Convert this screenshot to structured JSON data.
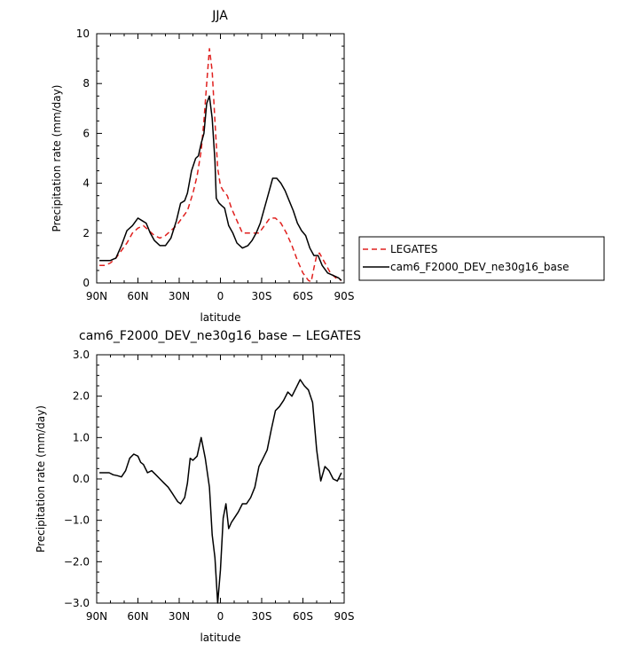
{
  "chart_data": [
    {
      "type": "line",
      "title": "JJA",
      "xlabel": "latitude",
      "ylabel": "Precipitation rate  (mm/day)",
      "xlim": [
        -90,
        90
      ],
      "ylim": [
        0,
        10
      ],
      "xticks": [
        -90,
        -60,
        -30,
        0,
        30,
        60,
        90
      ],
      "xtick_labels": [
        "90N",
        "60N",
        "30N",
        "0",
        "30S",
        "60S",
        "90S"
      ],
      "yticks": [
        0,
        2,
        4,
        6,
        8,
        10
      ],
      "ytick_labels": [
        "0",
        "2",
        "4",
        "6",
        "8",
        "10"
      ],
      "legend_position": "right",
      "series": [
        {
          "name": "LEGATES",
          "color": "#e0201e",
          "dash": "dashed",
          "x": [
            -88,
            -84,
            -80,
            -76,
            -72,
            -68,
            -64,
            -60,
            -56,
            -52,
            -48,
            -44,
            -40,
            -36,
            -32,
            -28,
            -24,
            -20,
            -17,
            -14,
            -12,
            -10,
            -8,
            -6,
            -4,
            -2,
            0,
            2,
            5,
            8,
            12,
            16,
            20,
            24,
            28,
            32,
            36,
            40,
            44,
            48,
            52,
            56,
            60,
            64,
            66,
            68,
            70,
            72,
            76,
            80,
            84,
            88
          ],
          "y": [
            0.7,
            0.7,
            0.8,
            1.0,
            1.3,
            1.6,
            2.0,
            2.2,
            2.3,
            2.1,
            1.9,
            1.8,
            1.9,
            2.1,
            2.3,
            2.6,
            2.9,
            3.6,
            4.3,
            5.3,
            6.5,
            8.0,
            9.4,
            8.5,
            6.5,
            4.6,
            3.9,
            3.7,
            3.5,
            3.0,
            2.5,
            2.0,
            2.0,
            2.0,
            2.0,
            2.3,
            2.6,
            2.6,
            2.4,
            2.0,
            1.5,
            0.9,
            0.4,
            0.1,
            0.05,
            0.6,
            1.1,
            1.2,
            0.8,
            0.4,
            0.2,
            0.1
          ]
        },
        {
          "name": "cam6_F2000_DEV_ne30g16_base",
          "color": "#000000",
          "dash": "solid",
          "x": [
            -88,
            -84,
            -80,
            -76,
            -72,
            -68,
            -64,
            -60,
            -57,
            -54,
            -51,
            -48,
            -44,
            -40,
            -36,
            -32,
            -29,
            -26,
            -24,
            -21,
            -18,
            -16,
            -14,
            -12,
            -10,
            -8,
            -6,
            -4,
            -3,
            -1,
            1,
            3,
            6,
            9,
            12,
            16,
            20,
            23,
            26,
            29,
            32,
            35,
            38,
            41,
            44,
            47,
            50,
            53,
            56,
            59,
            62,
            65,
            68,
            71,
            74,
            78,
            82,
            86,
            88
          ],
          "y": [
            0.9,
            0.9,
            0.9,
            1.0,
            1.5,
            2.1,
            2.3,
            2.6,
            2.5,
            2.4,
            2.0,
            1.7,
            1.5,
            1.5,
            1.8,
            2.5,
            3.2,
            3.3,
            3.6,
            4.5,
            5.0,
            5.1,
            5.6,
            6.0,
            7.2,
            7.5,
            6.6,
            4.9,
            3.4,
            3.2,
            3.1,
            3.0,
            2.3,
            2.0,
            1.6,
            1.4,
            1.5,
            1.7,
            2.0,
            2.4,
            3.0,
            3.6,
            4.2,
            4.2,
            4.0,
            3.7,
            3.3,
            2.9,
            2.4,
            2.1,
            1.9,
            1.4,
            1.1,
            1.1,
            0.7,
            0.4,
            0.3,
            0.2,
            0.1
          ]
        }
      ]
    },
    {
      "type": "line",
      "title": "cam6_F2000_DEV_ne30g16_base − LEGATES",
      "xlabel": "latitude",
      "ylabel": "Precipitation rate  (mm/day)",
      "xlim": [
        -90,
        90
      ],
      "ylim": [
        -3,
        3
      ],
      "xticks": [
        -90,
        -60,
        -30,
        0,
        30,
        60,
        90
      ],
      "xtick_labels": [
        "90N",
        "60N",
        "30N",
        "0",
        "30S",
        "60S",
        "90S"
      ],
      "yticks": [
        -3,
        -2,
        -1,
        0,
        1,
        2,
        3
      ],
      "ytick_labels": [
        "−3.0",
        "−2.0",
        "−1.0",
        "0.0",
        "1.0",
        "2.0",
        "3.0"
      ],
      "series": [
        {
          "color": "#000000",
          "dash": "solid",
          "x": [
            -88,
            -84,
            -81,
            -78,
            -75,
            -72,
            -69,
            -66,
            -63,
            -60,
            -58,
            -56,
            -53,
            -50,
            -47,
            -44,
            -41,
            -38,
            -35,
            -33,
            -31,
            -29,
            -26,
            -24,
            -22,
            -20,
            -17,
            -14,
            -11,
            -8,
            -6,
            -4,
            -2,
            0,
            2,
            4,
            6,
            8,
            10,
            13,
            16,
            19,
            22,
            25,
            28,
            31,
            34,
            37,
            40,
            43,
            46,
            49,
            52,
            55,
            58,
            61,
            64,
            67,
            70,
            73,
            76,
            79,
            82,
            85,
            88
          ],
          "y": [
            0.15,
            0.15,
            0.15,
            0.1,
            0.08,
            0.05,
            0.2,
            0.5,
            0.6,
            0.55,
            0.4,
            0.35,
            0.15,
            0.2,
            0.1,
            0.0,
            -0.1,
            -0.2,
            -0.35,
            -0.45,
            -0.55,
            -0.6,
            -0.45,
            -0.1,
            0.5,
            0.45,
            0.55,
            1.0,
            0.5,
            -0.2,
            -1.35,
            -1.9,
            -3.0,
            -2.2,
            -0.95,
            -0.6,
            -1.2,
            -1.05,
            -0.95,
            -0.8,
            -0.6,
            -0.6,
            -0.45,
            -0.2,
            0.3,
            0.5,
            0.7,
            1.2,
            1.65,
            1.75,
            1.9,
            2.1,
            2.0,
            2.2,
            2.4,
            2.25,
            2.15,
            1.85,
            0.7,
            -0.05,
            0.3,
            0.2,
            0.0,
            -0.05,
            0.15
          ]
        }
      ]
    }
  ]
}
